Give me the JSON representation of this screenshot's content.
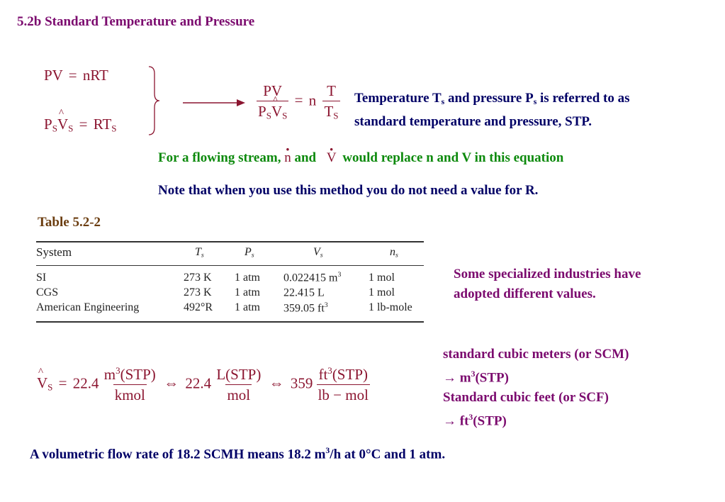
{
  "title": "5.2b Standard Temperature and Pressure",
  "eq_ideal": {
    "lhs": "PV",
    "op": "=",
    "rhs": "nRT"
  },
  "eq_std": {
    "p": "P",
    "p_sub": "S",
    "v": "V",
    "v_sub": "S",
    "op": "=",
    "rt": "RT",
    "rt_sub": "S"
  },
  "ratio": {
    "num_left": "PV",
    "den_left_p": "P",
    "den_left_p_sub": "S",
    "den_left_v": "V",
    "den_left_v_sub": "S",
    "eq": "=",
    "n": "n",
    "num_right": "T",
    "den_right": "T",
    "den_right_sub": "S"
  },
  "stp_note": {
    "part1": "Temperature T",
    "sub1": "s",
    "part2": " and pressure P",
    "sub2": "s",
    "part3": " is referred to as",
    "line2": "standard temperature and pressure, STP."
  },
  "flowing_note": {
    "part1": "For a flowing stream, ",
    "n": "n",
    "and": " and ",
    "v": "V",
    "part2": " would replace n and V in this equation"
  },
  "note_r": "Note that when you use this method you do not need a value for R.",
  "table_label": "Table 5.2-2",
  "table": {
    "headers": {
      "system": "System",
      "ts": "T",
      "ts_sub": "s",
      "ps": "P",
      "ps_sub": "s",
      "vs": "V",
      "vs_sub": "s",
      "ns": "n",
      "ns_sub": "s"
    },
    "rows": [
      {
        "system": "SI",
        "ts": "273 K",
        "ps": "1 atm",
        "vs": "0.022415 m",
        "vs_sup": "3",
        "ns": "1 mol"
      },
      {
        "system": "CGS",
        "ts": "273 K",
        "ps": "1 atm",
        "vs": "22.415 L",
        "vs_sup": "",
        "ns": "1 mol"
      },
      {
        "system": "American Engineering",
        "ts": "492°R",
        "ps": "1 atm",
        "vs": "359.05 ft",
        "vs_sup": "3",
        "ns": "1 lb-mole"
      }
    ]
  },
  "industries_note": {
    "line1": "Some specialized industries have",
    "line2": "adopted different values."
  },
  "vs_eq": {
    "lhs": "V",
    "lhs_sub": "S",
    "eq": "=",
    "c1": "22.4",
    "n1": "m",
    "n1_sup": "3",
    "n1_rest": "(STP)",
    "d1": "kmol",
    "iff1": "⇔",
    "c2": "22.4",
    "n2": "L(STP)",
    "d2": "mol",
    "iff2": "⇔",
    "c3": "359",
    "n3": "ft",
    "n3_sup": "3",
    "n3_rest": "(STP)",
    "d3": "lb − mol"
  },
  "units_note": {
    "l1": "standard cubic meters (or SCM)",
    "l2_arrow": "→",
    "l2": " m",
    "l2_sup": "3",
    "l2_rest": "(STP)",
    "l3": "Standard cubic feet (or SCF)",
    "l4_arrow": "→",
    "l4": " ft",
    "l4_sup": "3",
    "l4_rest": "(STP)"
  },
  "flow_rate_note": {
    "part1": "A volumetric flow rate of 18.2 SCMH means 18.2 m",
    "sup": "3",
    "part2": "/h at 0°C and 1 atm."
  }
}
